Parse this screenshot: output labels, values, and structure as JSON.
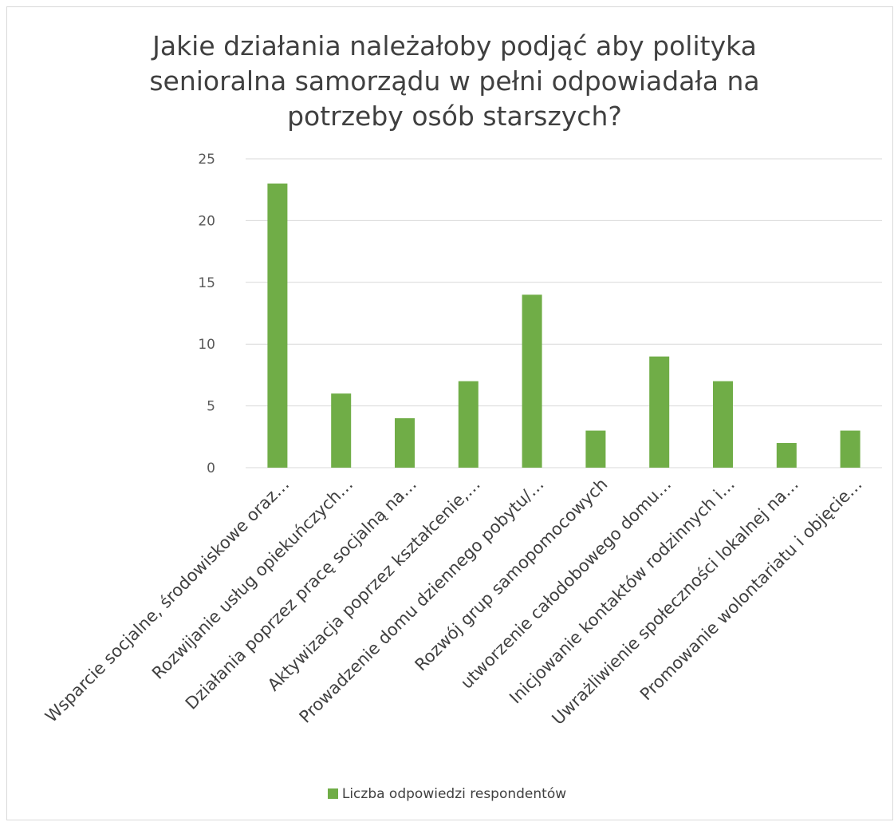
{
  "chart_data": {
    "type": "bar",
    "title": "Jakie działania należałoby podjąć aby polityka senioralna samorządu w pełni odpowiadała na potrzeby osób starszych?",
    "categories": [
      "Wsparcie socjalne, środowiskowe oraz…",
      "Rozwijanie usług opiekuńczych…",
      "Działania poprzez pracę socjalną na…",
      "Aktywizacja poprzez kształcenie,…",
      "Prowadzenie domu dziennego pobytu/…",
      "Rozwój grup samopomocowych",
      "utworzenie całodobowego domu…",
      "Inicjowanie kontaktów rodzinnych i…",
      "Uwrażliwienie społeczności lokalnej na…",
      "Promowanie wolontariatu i objęcie…"
    ],
    "series": [
      {
        "name": "Liczba odpowiedzi respondentów",
        "values": [
          23,
          6,
          4,
          7,
          14,
          3,
          9,
          7,
          2,
          3
        ]
      }
    ],
    "yticks": [
      "0",
      "5",
      "10",
      "15",
      "20",
      "25"
    ],
    "ylim": [
      0,
      25
    ],
    "grid": true,
    "legend_position": "bottom",
    "colors": {
      "bar": "#70ad47",
      "grid": "#d9d9d9",
      "text": "#595959"
    }
  }
}
